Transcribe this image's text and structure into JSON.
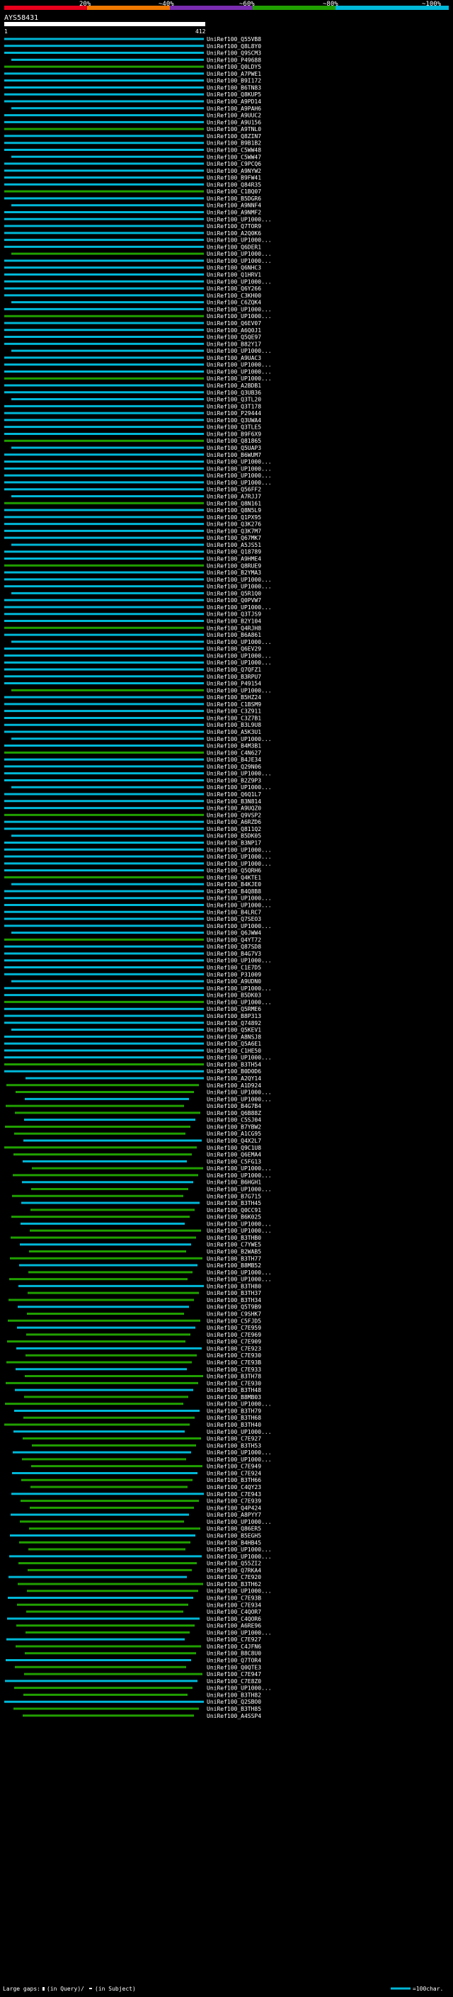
{
  "legend": {
    "ticks": [
      "20%",
      "~40%",
      "~60%",
      "~80%",
      "~100%"
    ],
    "colors": [
      "#e8001c",
      "#f07800",
      "#7a2cb0",
      "#20a000",
      "#00b8d8"
    ],
    "large_gaps_label": "Large gaps:",
    "in_query_label": "(in Query)/",
    "in_subject_label": "(in Subject)",
    "scale_label": "=100char."
  },
  "header": {
    "query_id": "AYS58431",
    "start_label": "1",
    "end_label": "412"
  },
  "chart_data": {
    "type": "alignment-coverage",
    "query_length": 412,
    "color_scale": [
      "#e8001c",
      "#f07800",
      "#7a2cb0",
      "#20a000",
      "#00b8d8"
    ],
    "hits": [
      "UniRef100_Q55VB8",
      "UniRef100_Q8L8Y0",
      "UniRef100_Q9SCM3",
      "UniRef100_P49688",
      "UniRef100_Q0LDY5",
      "UniRef100_A7PWE1",
      "UniRef100_B9I172",
      "UniRef100_B6TN83",
      "UniRef100_Q8KUP5",
      "UniRef100_A9PD14",
      "UniRef100_A9PAH6",
      "UniRef100_A9UUC2",
      "UniRef100_A9U156",
      "UniRef100_A9TNL0",
      "UniRef100_Q8ZIN7",
      "UniRef100_B9B1B2",
      "UniRef100_C5WW48",
      "UniRef100_C5WW47",
      "UniRef100_C9PCQ6",
      "UniRef100_A9NYW2",
      "UniRef100_B9FW41",
      "UniRef100_Q84R35",
      "UniRef100_C1BQ07",
      "UniRef100_B5DGR6",
      "UniRef100_A9NNF4",
      "UniRef100_A9NMF2",
      "UniRef100_UP1000...",
      "UniRef100_Q7TOR9",
      "UniRef100_A2Q0K6",
      "UniRef100_UP1000...",
      "UniRef100_Q6DER1",
      "UniRef100_UP1000...",
      "UniRef100_UP1000...",
      "UniRef100_Q6NHC3",
      "UniRef100_Q1HRV1",
      "UniRef100_UP1000...",
      "UniRef100_Q6Y266",
      "UniRef100_C3KH00",
      "UniRef100_C6ZQK4",
      "UniRef100_UP1000...",
      "UniRef100_UP1000...",
      "UniRef100_Q6EV07",
      "UniRef100_A6Q0J1",
      "UniRef100_Q5QE97",
      "UniRef100_B82Y17",
      "UniRef100_UP1000...",
      "UniRef100_A9UAC3",
      "UniRef100_UP1000...",
      "UniRef100_UP1000...",
      "UniRef100_UP1000...",
      "UniRef100_A2BDB1",
      "UniRef100_Q3UB36",
      "UniRef100_Q3TL20",
      "UniRef100_Q3T178",
      "UniRef100_P29444",
      "UniRef100_Q3UWA4",
      "UniRef100_Q3TLE5",
      "UniRef100_B9F6X9",
      "UniRef100_Q81865",
      "UniRef100_Q5UAP3",
      "UniRef100_B6WUM7",
      "UniRef100_UP1000...",
      "UniRef100_UP1000...",
      "UniRef100_UP1000...",
      "UniRef100_UP1000...",
      "UniRef100_Q56FF2",
      "UniRef100_A7RJJ7",
      "UniRef100_Q8N161",
      "UniRef100_Q8N5L9",
      "UniRef100_Q1PX95",
      "UniRef100_Q3K276",
      "UniRef100_Q3K7M7",
      "UniRef100_Q67MK7",
      "UniRef100_A5JS51",
      "UniRef100_Q18789",
      "UniRef100_A9HME4",
      "UniRef100_Q8RUE9",
      "UniRef100_B2YMA3",
      "UniRef100_UP1000...",
      "UniRef100_UP1000...",
      "UniRef100_Q5R1Q0",
      "UniRef100_Q0PVW7",
      "UniRef100_UP1000...",
      "UniRef100_Q3TJS9",
      "UniRef100_B2Y104",
      "UniRef100_Q4RJH8",
      "UniRef100_B6A861",
      "UniRef100_UP1000...",
      "UniRef100_Q6EV29",
      "UniRef100_UP1000...",
      "UniRef100_UP1000...",
      "UniRef100_Q7QFZ1",
      "UniRef100_B3RPU7",
      "UniRef100_P49154",
      "UniRef100_UP1000...",
      "UniRef100_B5HZ24",
      "UniRef100_C1BSM9",
      "UniRef100_C3Z911",
      "UniRef100_C3Z7B1",
      "UniRef100_B3L9U8",
      "UniRef100_A5K3U1",
      "UniRef100_UP1000...",
      "UniRef100_B4M3B1",
      "UniRef100_C4N627",
      "UniRef100_B4JE34",
      "UniRef100_Q29N06",
      "UniRef100_UP1000...",
      "UniRef100_B2Z9P3",
      "UniRef100_UP1000...",
      "UniRef100_Q6Q1L7",
      "UniRef100_B3N814",
      "UniRef100_A9UQZ0",
      "UniRef100_Q9VSP2",
      "UniRef100_A6RZD6",
      "UniRef100_Q811Q2",
      "UniRef100_B5DK05",
      "UniRef100_B3NP17",
      "UniRef100_UP1000...",
      "UniRef100_UP1000...",
      "UniRef100_UP1000...",
      "UniRef100_Q5QRH6",
      "UniRef100_Q4KTE1",
      "UniRef100_B4KJE0",
      "UniRef100_B4Q8B8",
      "UniRef100_UP1000...",
      "UniRef100_UP1000...",
      "UniRef100_B4LRC7",
      "UniRef100_Q7SEO3",
      "UniRef100_UP1000...",
      "UniRef100_Q6JWW4",
      "UniRef100_Q4YT72",
      "UniRef100_Q87SD8",
      "UniRef100_B4G7V3",
      "UniRef100_UP1000...",
      "UniRef100_C1E7D5",
      "UniRef100_P31009",
      "UniRef100_A9UDN0",
      "UniRef100_UP1000...",
      "UniRef100_B5DK03",
      "UniRef100_UP1000...",
      "UniRef100_Q5RME6",
      "UniRef100_B8P313",
      "UniRef100_Q74892",
      "UniRef100_Q5KEV1",
      "UniRef100_A8NSJ8",
      "UniRef100_Q5A6E1",
      "UniRef100_C1HE50",
      "UniRef100_UP1000...",
      "UniRef100_B3TH54",
      "UniRef100_B0D0D6",
      "UniRef100_A2QY14",
      "UniRef100_A1D924",
      "UniRef100_UP1000...",
      "UniRef100_UP1000...",
      "UniRef100_B4G7B4",
      "UniRef100_Q6B88Z",
      "UniRef100_C5SJ04",
      "UniRef100_B7YBW2",
      "UniRef100_A1CG95",
      "UniRef100_Q4X2L7",
      "UniRef100_Q9C1U8",
      "UniRef100_Q6EMA4",
      "UniRef100_C5FG13",
      "UniRef100_UP1000...",
      "UniRef100_UP1000...",
      "UniRef100_B6HGH1",
      "UniRef100_UP1000...",
      "UniRef100_B7G715",
      "UniRef100_B3TH45",
      "UniRef100_Q0CC91",
      "UniRef100_B6K025",
      "UniRef100_UP1000...",
      "UniRef100_UP1000...",
      "UniRef100_B3THB0",
      "UniRef100_C7YWE5",
      "UniRef100_B2WAB5",
      "UniRef100_B3TH77",
      "UniRef100_B8MB52",
      "UniRef100_UP1000...",
      "UniRef100_UP1000...",
      "UniRef100_B3TH80",
      "UniRef100_B3TH37",
      "UniRef100_B3TH34",
      "UniRef100_Q5T9B9",
      "UniRef100_C9SHK7",
      "UniRef100_C5FJD5",
      "UniRef100_C7E959",
      "UniRef100_C7E969",
      "UniRef100_C7E909",
      "UniRef100_C7E923",
      "UniRef100_C7E930",
      "UniRef100_C7E93B",
      "UniRef100_C7E933",
      "UniRef100_B3TH78",
      "UniRef100_C7E930",
      "UniRef100_B3TH48",
      "UniRef100_B8MB03",
      "UniRef100_UP1000...",
      "UniRef100_B3TH79",
      "UniRef100_B3TH68",
      "UniRef100_B3TH40",
      "UniRef100_UP1000...",
      "UniRef100_C7E927",
      "UniRef100_B3TH53",
      "UniRef100_UP1000...",
      "UniRef100_UP1000...",
      "UniRef100_C7E949",
      "UniRef100_C7E924",
      "UniRef100_B3TH66",
      "UniRef100_C4QY23",
      "UniRef100_C7E943",
      "UniRef100_C7E939",
      "UniRef100_Q4P424",
      "UniRef100_A8PYY7",
      "UniRef100_UP1000...",
      "UniRef100_Q86ER5",
      "UniRef100_B5EGH5",
      "UniRef100_B4HB45",
      "UniRef100_UP1000...",
      "UniRef100_UP1000...",
      "UniRef100_Q55ZI2",
      "UniRef100_Q7RKA4",
      "UniRef100_C7E920",
      "UniRef100_B3TH62",
      "UniRef100_UP1000...",
      "UniRef100_C7E93B",
      "UniRef100_C7E934",
      "UniRef100_C4QOR7",
      "UniRef100_C4QOR6",
      "UniRef100_A6RE96",
      "UniRef100_UP1000...",
      "UniRef100_C7E927",
      "UniRef100_C4JFN6",
      "UniRef100_B8C8U0",
      "UniRef100_Q7TOR4",
      "UniRef100_Q0QTE3",
      "UniRef100_C7E947",
      "UniRef100_C7E8Z0",
      "UniRef100_UP1000...",
      "UniRef100_B3TH82",
      "UniRef100_Q2SBO0",
      "UniRef100_B3TH85",
      "UniRef100_A4SSP4"
    ]
  }
}
